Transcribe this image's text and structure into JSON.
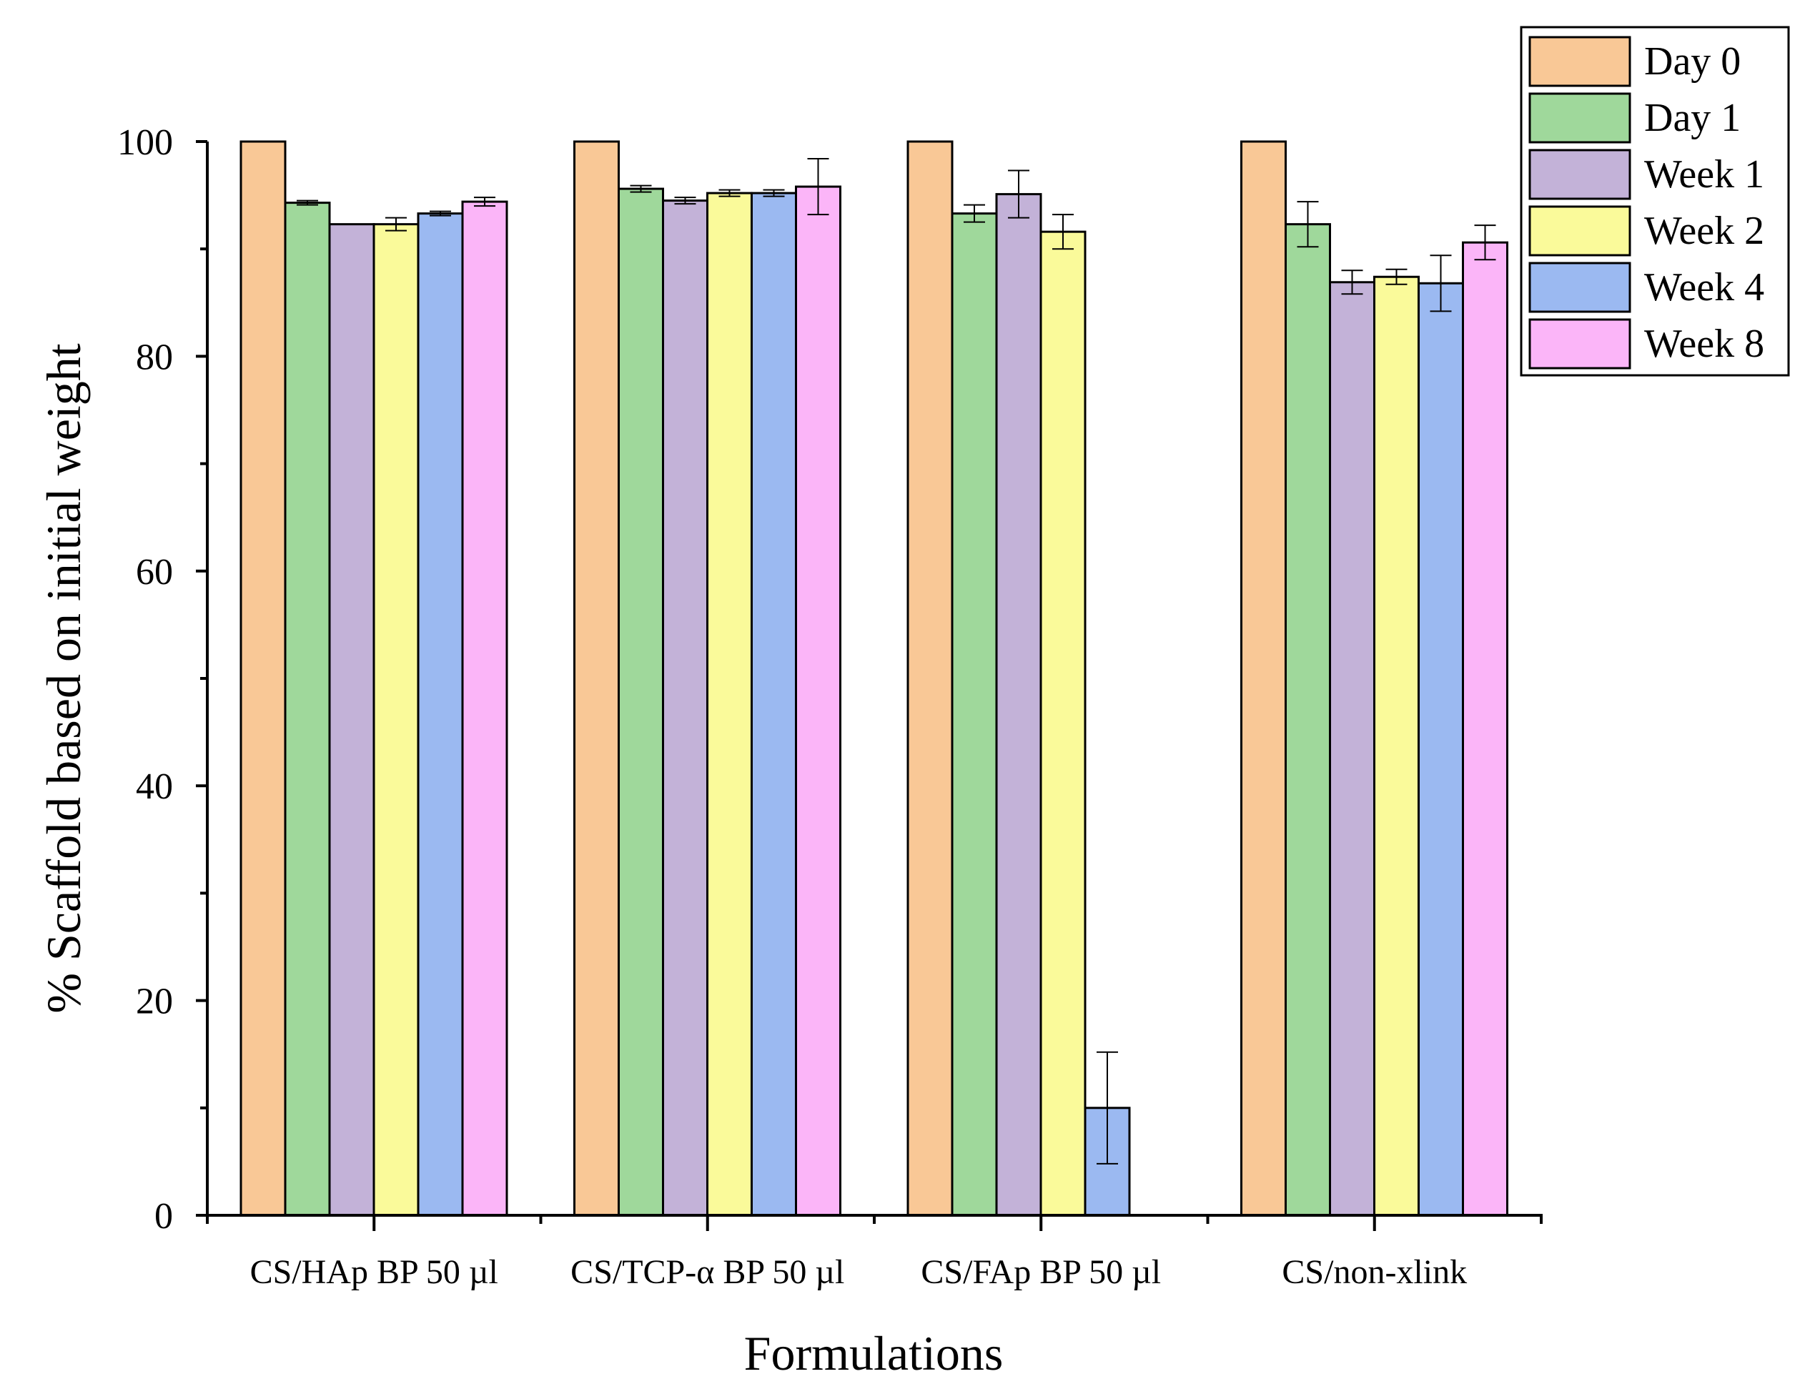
{
  "chart_data": {
    "type": "bar",
    "title": "",
    "xlabel": "Formulations",
    "ylabel": "% Scaffold based on initial weight",
    "ylim": [
      0,
      100
    ],
    "yticks": [
      0,
      20,
      40,
      60,
      80,
      100
    ],
    "ytick_labels": [
      "0",
      "20",
      "40",
      "60",
      "80",
      "100"
    ],
    "categories": [
      "CS/HAp BP 50 µl",
      "CS/TCP-α BP 50 µl",
      "CS/FAp BP 50 µl",
      "CS/non-xlink"
    ],
    "legend_position": "top-right",
    "series": [
      {
        "name": "Day 0",
        "color": "#F9C896",
        "values": [
          100,
          100,
          100,
          100
        ],
        "errors": [
          0,
          0,
          0,
          0
        ]
      },
      {
        "name": "Day 1",
        "color": "#9FD89B",
        "values": [
          94.3,
          95.6,
          93.3,
          92.3
        ],
        "errors": [
          0.2,
          0.3,
          0.8,
          2.1
        ]
      },
      {
        "name": "Week 1",
        "color": "#C3B2D8",
        "values": [
          92.3,
          94.5,
          95.1,
          86.9
        ],
        "errors": [
          0,
          0.3,
          2.2,
          1.1
        ]
      },
      {
        "name": "Week 2",
        "color": "#FAFA9A",
        "values": [
          92.3,
          95.2,
          91.6,
          87.4
        ],
        "errors": [
          0.6,
          0.3,
          1.6,
          0.7
        ]
      },
      {
        "name": "Week 4",
        "color": "#9BB9F1",
        "values": [
          93.3,
          95.2,
          10.0,
          86.8
        ],
        "errors": [
          0.2,
          0.3,
          5.2,
          2.6
        ]
      },
      {
        "name": "Week 8",
        "color": "#FBB5F8",
        "values": [
          94.4,
          95.8,
          null,
          90.6
        ],
        "errors": [
          0.4,
          2.6,
          0,
          1.6
        ]
      }
    ]
  }
}
